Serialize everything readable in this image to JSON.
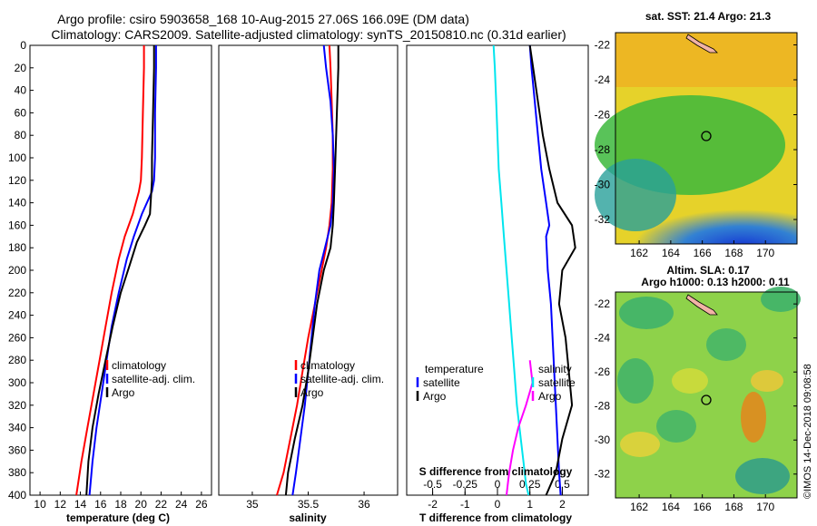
{
  "header": {
    "title_line1": "Argo profile: csiro 5903658_168 10-Aug-2015 27.06S 166.09E (DM data)",
    "title_line2": "Climatology: CARS2009. Satellite-adjusted climatology: synTS_20150810.nc (0.31d earlier)"
  },
  "footer": {
    "credit": "©IMOS 14-Dec-2018 09:08:58"
  },
  "maps": {
    "sst": {
      "title": "sat. SST: 21.4 Argo: 21.3",
      "y_ticks": [
        "-22",
        "-24",
        "-26",
        "-28",
        "-30",
        "-32"
      ],
      "x_ticks": [
        "162",
        "164",
        "166",
        "168",
        "170"
      ]
    },
    "sla": {
      "title_line1": "Altim. SLA: 0.17",
      "title_line2": "Argo h1000: 0.13 h2000: 0.11",
      "y_ticks": [
        "-22",
        "-24",
        "-26",
        "-28",
        "-30",
        "-32"
      ],
      "x_ticks": [
        "162",
        "164",
        "166",
        "168",
        "170"
      ]
    }
  },
  "chart_data": [
    {
      "type": "line",
      "id": "temperature",
      "xlabel": "temperature (deg C)",
      "ylabel": "",
      "xlim": [
        9,
        27
      ],
      "ylim": [
        400,
        0
      ],
      "x_ticks": [
        10,
        12,
        14,
        16,
        18,
        20,
        22,
        24,
        26
      ],
      "x_tick_labels": [
        "10",
        "12",
        "14",
        "16",
        "18",
        "20",
        "22",
        "24",
        "26"
      ],
      "y_ticks": [
        0,
        20,
        40,
        60,
        80,
        100,
        120,
        140,
        160,
        180,
        200,
        220,
        240,
        260,
        280,
        300,
        320,
        340,
        360,
        380,
        400
      ],
      "y_tick_labels": [
        "0",
        "20",
        "40",
        "60",
        "80",
        "100",
        "120",
        "140",
        "160",
        "180",
        "200",
        "220",
        "240",
        "260",
        "280",
        "300",
        "320",
        "340",
        "360",
        "380",
        "400"
      ],
      "legend": [
        {
          "name": "climatology",
          "color": "#ff0000"
        },
        {
          "name": "satellite-adj. clim.",
          "color": "#0000ff"
        },
        {
          "name": "Argo",
          "color": "#000000"
        }
      ],
      "series": [
        {
          "name": "climatology",
          "color": "#ff0000",
          "x": [
            20.3,
            20.3,
            20.2,
            20.1,
            20.0,
            19.8,
            19.2,
            18.4,
            17.8,
            17.1,
            16.5,
            15.9,
            15.3,
            14.7,
            14.1,
            13.6
          ],
          "depth": [
            0,
            20,
            60,
            100,
            120,
            130,
            150,
            170,
            190,
            220,
            250,
            280,
            310,
            340,
            370,
            400
          ]
        },
        {
          "name": "satellite-adj. clim.",
          "color": "#0000ff",
          "x": [
            21.5,
            21.5,
            21.4,
            21.4,
            21.3,
            21.1,
            20.1,
            19.3,
            18.6,
            17.8,
            17.1,
            16.6,
            16.1,
            15.6,
            15.2,
            14.9
          ],
          "depth": [
            0,
            20,
            60,
            100,
            120,
            130,
            150,
            170,
            190,
            220,
            250,
            280,
            310,
            340,
            370,
            400
          ]
        },
        {
          "name": "Argo",
          "color": "#000000",
          "x": [
            21.3,
            21.3,
            21.2,
            21.1,
            21.1,
            20.9,
            20.4,
            19.6,
            18.9,
            18.0,
            17.2,
            16.5,
            15.8,
            15.2,
            14.8,
            14.6
          ],
          "depth": [
            0,
            20,
            60,
            100,
            120,
            150,
            160,
            175,
            195,
            220,
            250,
            280,
            310,
            340,
            370,
            400
          ]
        }
      ]
    },
    {
      "type": "line",
      "id": "salinity",
      "xlabel": "salinity",
      "ylabel": "",
      "xlim": [
        34.7,
        36.3
      ],
      "ylim": [
        400,
        0
      ],
      "x_ticks": [
        35,
        35.5,
        36
      ],
      "x_tick_labels": [
        "35",
        "35.5",
        "36"
      ],
      "legend": [
        {
          "name": "climatology",
          "color": "#ff0000"
        },
        {
          "name": "satellite-adj. clim.",
          "color": "#0000ff"
        },
        {
          "name": "Argo",
          "color": "#000000"
        }
      ],
      "series": [
        {
          "name": "climatology",
          "color": "#ff0000",
          "x": [
            35.69,
            35.7,
            35.71,
            35.72,
            35.72,
            35.71,
            35.69,
            35.66,
            35.62,
            35.56,
            35.5,
            35.45,
            35.4,
            35.34,
            35.28,
            35.22
          ],
          "depth": [
            0,
            20,
            50,
            80,
            110,
            140,
            160,
            180,
            200,
            230,
            260,
            290,
            320,
            350,
            380,
            400
          ]
        },
        {
          "name": "satellite-adj. clim.",
          "color": "#0000ff",
          "x": [
            35.64,
            35.66,
            35.7,
            35.72,
            35.73,
            35.72,
            35.7,
            35.65,
            35.6,
            35.56,
            35.53,
            35.5,
            35.47,
            35.43,
            35.39,
            35.36
          ],
          "depth": [
            0,
            20,
            50,
            80,
            110,
            140,
            160,
            180,
            200,
            230,
            260,
            290,
            320,
            350,
            380,
            400
          ]
        },
        {
          "name": "Argo",
          "color": "#000000",
          "x": [
            35.77,
            35.77,
            35.76,
            35.75,
            35.74,
            35.73,
            35.72,
            35.7,
            35.64,
            35.58,
            35.54,
            35.5,
            35.45,
            35.38,
            35.32,
            35.3
          ],
          "depth": [
            0,
            20,
            50,
            80,
            110,
            140,
            160,
            180,
            200,
            230,
            260,
            290,
            320,
            350,
            380,
            400
          ]
        }
      ]
    },
    {
      "type": "line",
      "id": "differences",
      "xlabel": "T difference from climatology",
      "top_axis_label": "S difference from climatology",
      "xlim": [
        -2.8,
        2.8
      ],
      "ylim": [
        400,
        0
      ],
      "x_ticks": [
        -2,
        -1,
        0,
        1,
        2
      ],
      "x_tick_labels": [
        "-2",
        "-1",
        "0",
        "1",
        "2"
      ],
      "s_xlim": [
        -0.7,
        0.7
      ],
      "s_ticks": [
        -0.5,
        -0.25,
        0,
        0.25,
        0.5
      ],
      "s_tick_labels": [
        "-0.5",
        "-0.25",
        "0",
        "0.25",
        "0.5"
      ],
      "legend_temperature_title": "temperature",
      "legend_salinity_title": "salinity",
      "legend_temperature": [
        {
          "name": "satellite",
          "color": "#0000ff"
        },
        {
          "name": "Argo",
          "color": "#000000"
        }
      ],
      "legend_salinity": [
        {
          "name": "satellite",
          "color": "#00e5ee"
        },
        {
          "name": "Argo",
          "color": "#ff00ff"
        }
      ],
      "series": [
        {
          "name": "T satellite",
          "color": "#0000ff",
          "axis": "T",
          "x": [
            1.0,
            1.05,
            1.15,
            1.25,
            1.35,
            1.5,
            1.6,
            1.5,
            1.55,
            1.65,
            1.7,
            1.75,
            1.8,
            1.85,
            1.9,
            1.95
          ],
          "depth": [
            0,
            20,
            50,
            80,
            110,
            140,
            160,
            170,
            200,
            230,
            260,
            290,
            320,
            350,
            380,
            400
          ]
        },
        {
          "name": "T Argo",
          "color": "#000000",
          "axis": "T",
          "x": [
            1.0,
            1.1,
            1.25,
            1.4,
            1.6,
            1.85,
            2.3,
            2.4,
            2.0,
            1.9,
            2.1,
            2.2,
            2.3,
            2.0,
            1.8,
            1.5
          ],
          "depth": [
            0,
            20,
            50,
            80,
            110,
            140,
            160,
            180,
            200,
            230,
            260,
            290,
            320,
            350,
            380,
            400
          ]
        },
        {
          "name": "S satellite",
          "color": "#00e5ee",
          "axis": "S",
          "x": [
            -0.03,
            -0.02,
            -0.01,
            0.0,
            0.01,
            0.03,
            0.05,
            0.07,
            0.09,
            0.11,
            0.13,
            0.15,
            0.18,
            0.2,
            0.22,
            0.24
          ],
          "depth": [
            0,
            20,
            50,
            80,
            110,
            140,
            170,
            200,
            230,
            260,
            290,
            320,
            350,
            370,
            390,
            400
          ]
        },
        {
          "name": "S Argo",
          "color": "#ff00ff",
          "axis": "S",
          "x": [
            0.25,
            0.27,
            0.22,
            0.16,
            0.12,
            0.09,
            0.08,
            0.07
          ],
          "depth": [
            280,
            300,
            320,
            340,
            360,
            380,
            390,
            400
          ]
        }
      ]
    }
  ]
}
